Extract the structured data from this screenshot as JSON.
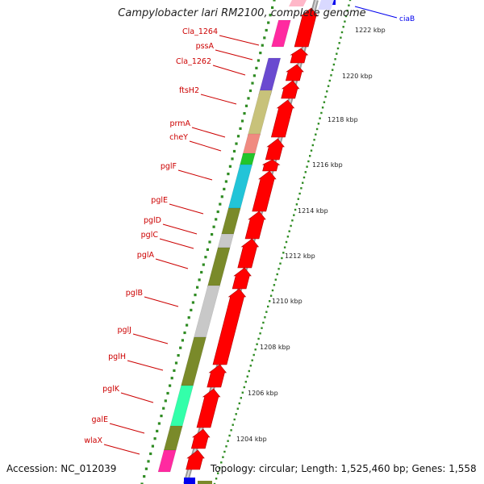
{
  "title": "Campylobacter lari RM2100, complete genome",
  "accession": "Accession: NC_012039",
  "info": "Topology: circular; Length: 1,525,460 bp; Genes: 1,558",
  "top_right_gene": "ciaB",
  "gene_labels": [
    "Cla_1264",
    "pssA",
    "Cla_1262",
    "ftsH2",
    "prmA",
    "cheY",
    "pglF",
    "pglE",
    "pglD",
    "pglC",
    "pglA",
    "pglB",
    "pglJ",
    "pglH",
    "pglK",
    "galE",
    "wlaX"
  ],
  "scale_labels": [
    "1222 kbp",
    "1220 kbp",
    "1218 kbp",
    "1216 kbp",
    "1214 kbp",
    "1212 kbp",
    "1210 kbp",
    "1208 kbp",
    "1206 kbp",
    "1204 kbp"
  ],
  "colors": {
    "cds_forward": "#ff0000",
    "label_text": "#cc0000",
    "ruler_dots": "#2e8b22",
    "backbone": "#8c8c8c",
    "cog_olive": "#7a8a2a",
    "cog_khaki": "#c8c27a",
    "cog_grey": "#c8c8c8",
    "cog_cyan": "#22c4d8",
    "cog_aqua": "#33ffaa",
    "cog_magenta": "#ff2aa0",
    "cog_purple": "#6a4ad0",
    "cog_salmon": "#f08a80",
    "cog_green": "#22c52a",
    "ciaB_blue": "#0000ee"
  }
}
